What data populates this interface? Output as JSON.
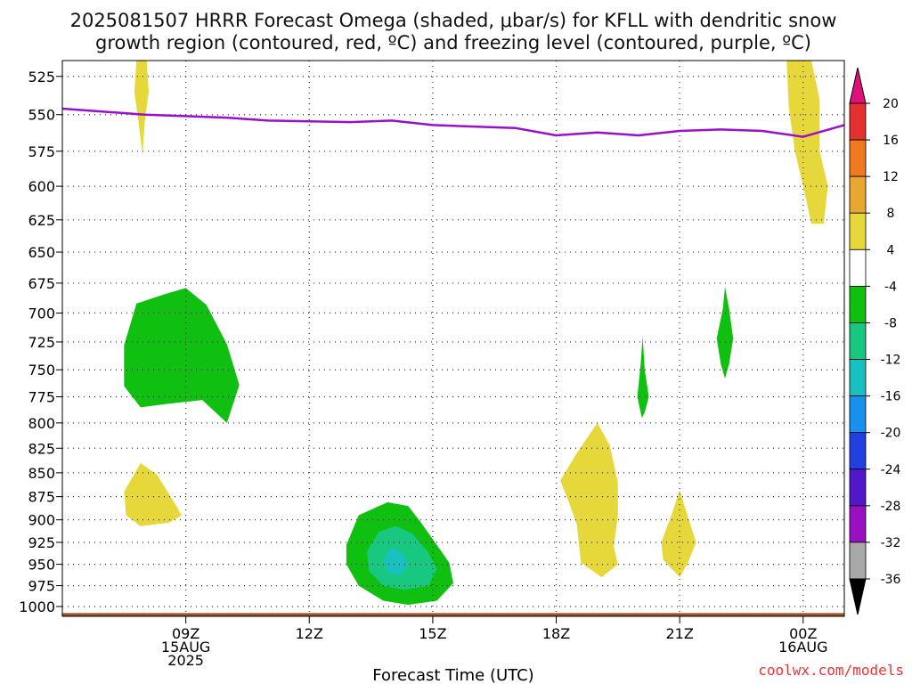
{
  "header": {
    "title_line1": "2025081507 HRRR Forecast Omega (shaded, μbar/s) for KFLL with dendritic snow",
    "title_line2": "growth region (contoured, red, ºC) and freezing level (contoured, purple, ºC)"
  },
  "footer": {
    "credit": "coolwx.com/models"
  },
  "chart_data": {
    "type": "heatmap",
    "title": "2025081507 HRRR Forecast Omega (shaded, μbar/s) for KFLL with dendritic snow growth region (contoured, red, ºC) and freezing level (contoured, purple, ºC)",
    "xlabel": "Forecast Time (UTC)",
    "ylabel": "",
    "x_ticks": [
      {
        "hour": 9,
        "lines": [
          "09Z",
          "15AUG",
          "2025"
        ]
      },
      {
        "hour": 12,
        "lines": [
          "12Z"
        ]
      },
      {
        "hour": 15,
        "lines": [
          "15Z"
        ]
      },
      {
        "hour": 18,
        "lines": [
          "18Z"
        ]
      },
      {
        "hour": 21,
        "lines": [
          "21Z"
        ]
      },
      {
        "hour": 24,
        "lines": [
          "00Z",
          "16AUG"
        ]
      }
    ],
    "xlim": [
      6.0,
      25.0
    ],
    "y_ticks": [
      525,
      550,
      575,
      600,
      625,
      650,
      675,
      700,
      725,
      750,
      775,
      800,
      825,
      850,
      875,
      900,
      925,
      950,
      975,
      1000
    ],
    "ylim": [
      515,
      1012
    ],
    "y_scale": "log-pressure (inverted)",
    "grid": true,
    "colorbar": {
      "labels": [
        "20",
        "16",
        "12",
        "8",
        "4",
        "-4",
        "-8",
        "-12",
        "-16",
        "-20",
        "-24",
        "-28",
        "-32",
        "-36"
      ],
      "top_arrow_color": "#e0107a",
      "bottom_arrow_color": "#000000",
      "bins": [
        {
          "color": "#e43030"
        },
        {
          "color": "#f07820"
        },
        {
          "color": "#e8a830"
        },
        {
          "color": "#e6d83a"
        },
        {
          "color": "#ffffff"
        },
        {
          "color": "#10c010"
        },
        {
          "color": "#18c880"
        },
        {
          "color": "#18c0c0"
        },
        {
          "color": "#1890f0"
        },
        {
          "color": "#2040e0"
        },
        {
          "color": "#5018c8"
        },
        {
          "color": "#9810c0"
        },
        {
          "color": "#a8a8a8"
        }
      ]
    },
    "freezing_level": {
      "color": "#9a10c8",
      "points": [
        [
          6.0,
          546
        ],
        [
          7.0,
          548
        ],
        [
          8.0,
          550
        ],
        [
          9.0,
          551
        ],
        [
          10.0,
          552
        ],
        [
          11.0,
          554
        ],
        [
          12.0,
          554.5
        ],
        [
          13.0,
          555
        ],
        [
          14.0,
          554
        ],
        [
          15.0,
          557
        ],
        [
          16.0,
          558
        ],
        [
          17.0,
          559
        ],
        [
          18.0,
          564
        ],
        [
          19.0,
          562
        ],
        [
          20.0,
          564
        ],
        [
          21.0,
          561
        ],
        [
          22.0,
          560
        ],
        [
          23.0,
          561
        ],
        [
          24.0,
          565
        ],
        [
          25.0,
          557
        ]
      ]
    },
    "terrain": {
      "color": "#a0522d",
      "pressure": 1008
    },
    "omega_regions": [
      {
        "value": 4,
        "color": "#e6d83a",
        "points": [
          [
            7.8,
            515
          ],
          [
            8.05,
            515
          ],
          [
            8.1,
            535
          ],
          [
            8.0,
            555
          ],
          [
            7.95,
            578
          ],
          [
            7.85,
            555
          ],
          [
            7.75,
            535
          ]
        ]
      },
      {
        "value": 4,
        "color": "#e6d83a",
        "points": [
          [
            23.6,
            515
          ],
          [
            24.2,
            515
          ],
          [
            24.4,
            540
          ],
          [
            24.4,
            575
          ],
          [
            24.6,
            600
          ],
          [
            24.5,
            628
          ],
          [
            24.2,
            628
          ],
          [
            24.0,
            600
          ],
          [
            23.8,
            575
          ],
          [
            23.65,
            545
          ]
        ]
      },
      {
        "value": -4,
        "color": "#10c010",
        "points": [
          [
            7.5,
            728
          ],
          [
            7.8,
            692
          ],
          [
            8.5,
            684
          ],
          [
            9.0,
            679
          ],
          [
            9.5,
            693
          ],
          [
            10.0,
            727
          ],
          [
            10.3,
            764
          ],
          [
            10.0,
            800
          ],
          [
            9.4,
            778
          ],
          [
            8.5,
            782
          ],
          [
            7.9,
            785
          ],
          [
            7.5,
            765
          ]
        ]
      },
      {
        "value": 4,
        "color": "#e6d83a",
        "points": [
          [
            7.5,
            870
          ],
          [
            7.9,
            840
          ],
          [
            8.3,
            852
          ],
          [
            8.7,
            880
          ],
          [
            8.9,
            895
          ],
          [
            8.6,
            903
          ],
          [
            7.9,
            907
          ],
          [
            7.55,
            895
          ]
        ]
      },
      {
        "value": -4,
        "color": "#10c010",
        "points": [
          [
            12.9,
            928
          ],
          [
            13.2,
            895
          ],
          [
            13.9,
            881
          ],
          [
            14.4,
            885
          ],
          [
            14.7,
            902
          ],
          [
            15.1,
            928
          ],
          [
            15.4,
            948
          ],
          [
            15.5,
            972
          ],
          [
            15.1,
            993
          ],
          [
            14.4,
            998
          ],
          [
            13.8,
            993
          ],
          [
            13.2,
            975
          ],
          [
            12.9,
            950
          ]
        ]
      },
      {
        "value": -8,
        "color": "#18c880",
        "points": [
          [
            13.4,
            935
          ],
          [
            13.7,
            913
          ],
          [
            14.1,
            907
          ],
          [
            14.5,
            915
          ],
          [
            14.9,
            937
          ],
          [
            15.1,
            955
          ],
          [
            14.9,
            975
          ],
          [
            14.3,
            980
          ],
          [
            13.8,
            975
          ],
          [
            13.45,
            958
          ]
        ]
      },
      {
        "value": -12,
        "color": "#18c0c0",
        "points": [
          [
            13.8,
            945
          ],
          [
            14.0,
            930
          ],
          [
            14.3,
            938
          ],
          [
            14.4,
            952
          ],
          [
            14.2,
            962
          ],
          [
            13.9,
            960
          ]
        ]
      },
      {
        "value": 4,
        "color": "#e6d83a",
        "points": [
          [
            18.1,
            858
          ],
          [
            18.5,
            830
          ],
          [
            19.0,
            800
          ],
          [
            19.3,
            822
          ],
          [
            19.5,
            860
          ],
          [
            19.5,
            895
          ],
          [
            19.4,
            930
          ],
          [
            19.5,
            950
          ],
          [
            19.1,
            965
          ],
          [
            18.6,
            948
          ],
          [
            18.5,
            905
          ],
          [
            18.3,
            880
          ]
        ]
      },
      {
        "value": -4,
        "color": "#10c010",
        "points": [
          [
            19.97,
            775
          ],
          [
            20.05,
            745
          ],
          [
            20.1,
            720
          ],
          [
            20.15,
            750
          ],
          [
            20.25,
            775
          ],
          [
            20.15,
            790
          ],
          [
            20.08,
            795
          ]
        ]
      },
      {
        "value": 4,
        "color": "#e6d83a",
        "points": [
          [
            20.55,
            925
          ],
          [
            20.8,
            895
          ],
          [
            21.0,
            868
          ],
          [
            21.15,
            890
          ],
          [
            21.4,
            925
          ],
          [
            21.2,
            948
          ],
          [
            21.0,
            965
          ],
          [
            20.6,
            945
          ]
        ]
      },
      {
        "value": -4,
        "color": "#10c010",
        "points": [
          [
            21.9,
            722
          ],
          [
            22.05,
            696
          ],
          [
            22.1,
            678
          ],
          [
            22.2,
            696
          ],
          [
            22.3,
            722
          ],
          [
            22.2,
            745
          ],
          [
            22.1,
            758
          ],
          [
            22.0,
            745
          ]
        ]
      }
    ]
  }
}
